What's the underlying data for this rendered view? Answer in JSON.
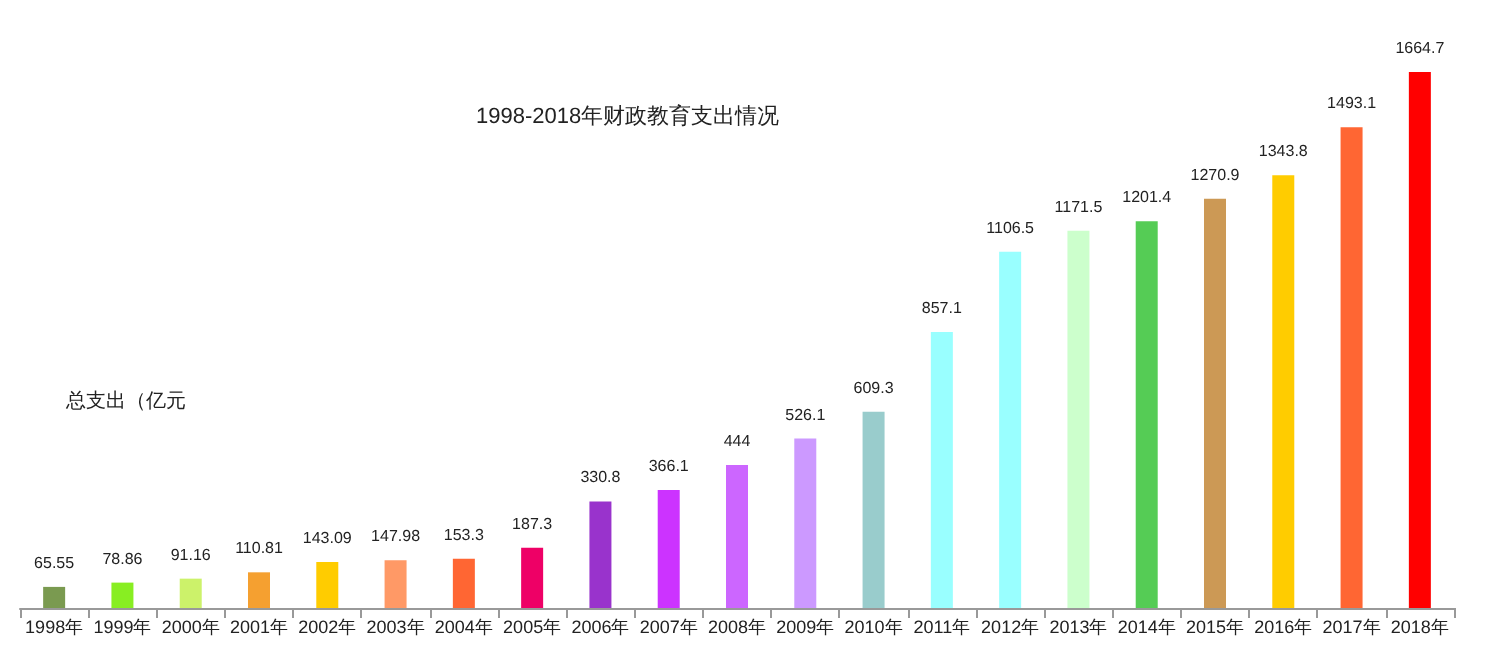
{
  "chart_data": {
    "type": "bar",
    "title": "1998-2018年财政教育支出情况",
    "ylabel": "总支出（亿元",
    "categories": [
      "1998年",
      "1999年",
      "2000年",
      "2001年",
      "2002年",
      "2003年",
      "2004年",
      "2005年",
      "2006年",
      "2007年",
      "2008年",
      "2009年",
      "2010年",
      "2011年",
      "2012年",
      "2013年",
      "2014年",
      "2015年",
      "2016年",
      "2017年",
      "2018年"
    ],
    "values": [
      65.55,
      78.86,
      91.16,
      110.81,
      143.09,
      147.98,
      153.3,
      187.3,
      330.8,
      366.1,
      444,
      526.1,
      609.3,
      857.1,
      1106.5,
      1171.5,
      1201.4,
      1270.9,
      1343.8,
      1493.1,
      1664.7
    ],
    "colors": [
      "#7a9a50",
      "#88ee22",
      "#ccf26a",
      "#f5a030",
      "#ffcc00",
      "#ff9966",
      "#ff6633",
      "#ee0066",
      "#9933cc",
      "#cc33ff",
      "#cc66ff",
      "#cc99ff",
      "#99cccc",
      "#99ffff",
      "#99ffff",
      "#ccffcc",
      "#55cc55",
      "#cc9955",
      "#ffcc00",
      "#ff6633",
      "#ff0000"
    ],
    "data_labels": true
  }
}
